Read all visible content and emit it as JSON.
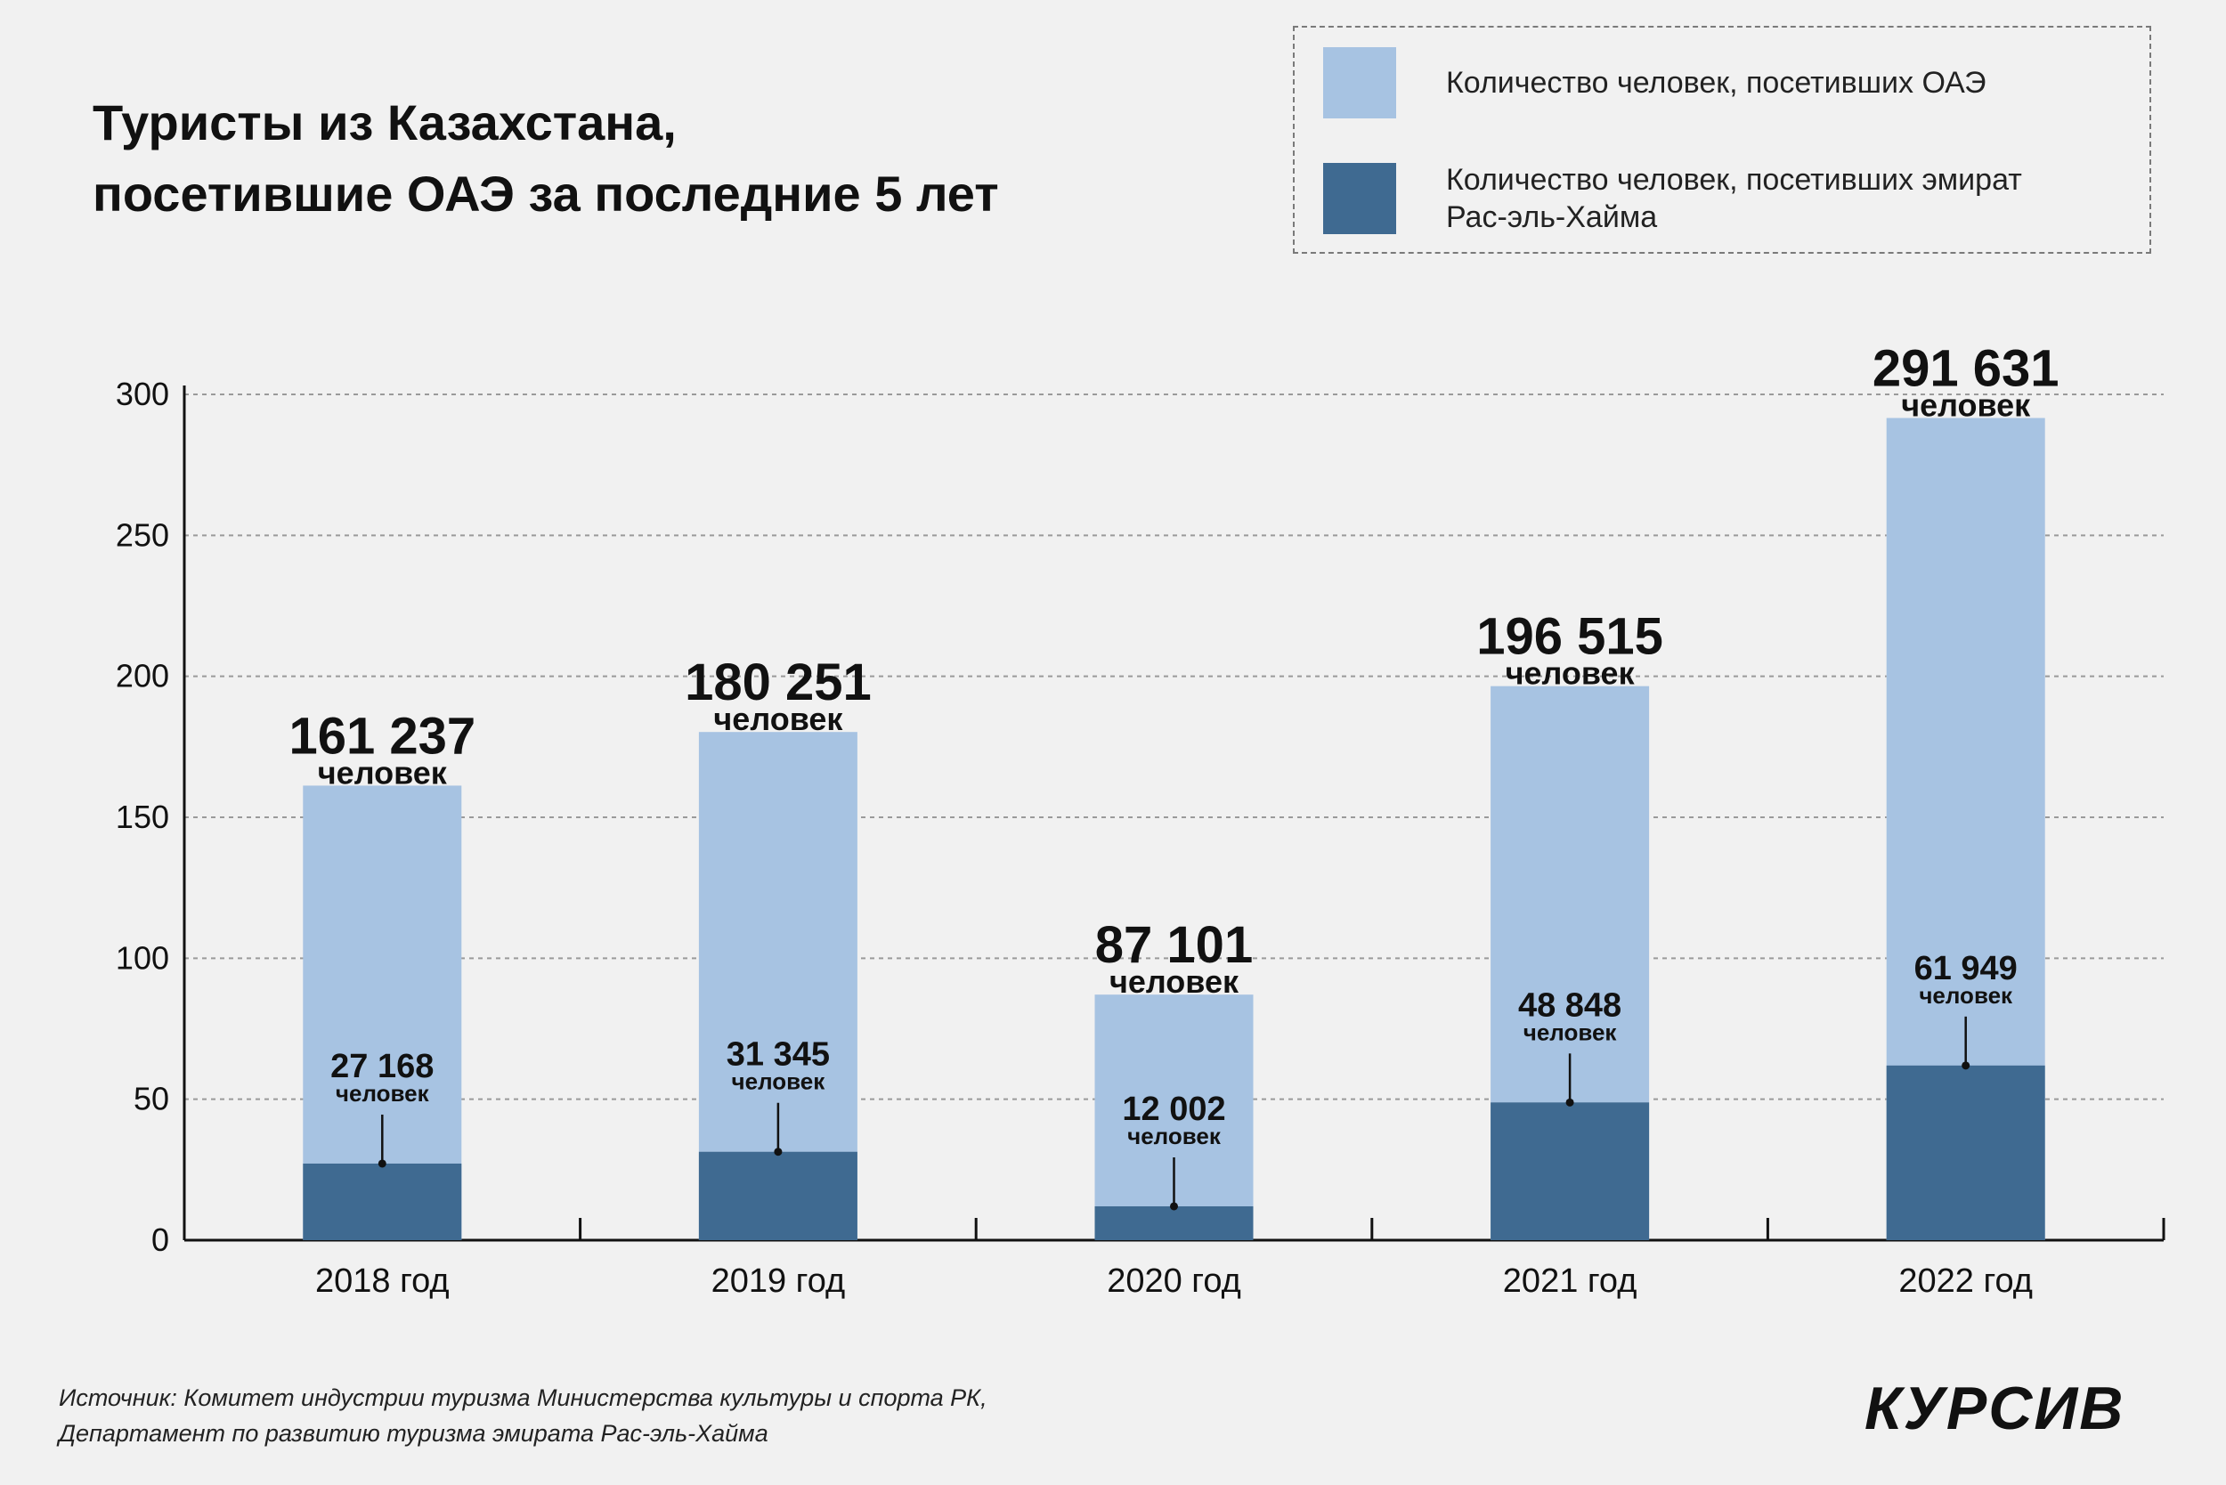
{
  "title": {
    "line1": "Туристы из Казахстана,",
    "line2": "посетившие ОАЭ за последние 5 лет"
  },
  "legend": {
    "total_label": "Количество человек, посетивших ОАЭ",
    "rak_label": "Количество человек, посетивших эмират Рас-эль-Хайма"
  },
  "colors": {
    "total": "#a7c3e2",
    "rak": "#3f6a91",
    "grid": "#9a9a9a",
    "axis": "#111111",
    "background": "#f1f1f1"
  },
  "chart_data": {
    "type": "bar",
    "stacked_overlay": true,
    "title": "Туристы из Казахстана, посетившие ОАЭ за последние 5 лет",
    "xlabel": "",
    "ylabel": "",
    "ylim": [
      0,
      300
    ],
    "yticks": [
      "0",
      "50",
      "100",
      "150",
      "200",
      "250",
      "300"
    ],
    "grid": true,
    "legend_position": "top-right",
    "categories": [
      "2018 год",
      "2019 год",
      "2020 год",
      "2021 год",
      "2022 год"
    ],
    "series": [
      {
        "name": "Количество человек, посетивших ОАЭ",
        "values": [
          161.237,
          180.251,
          87.101,
          196.515,
          291.631
        ],
        "labels": [
          "161 237",
          "180 251",
          "87 101",
          "196 515",
          "291 631"
        ]
      },
      {
        "name": "Количество человек, посетивших эмират Рас-эль-Хайма",
        "values": [
          27.168,
          31.345,
          12.002,
          48.848,
          61.949
        ],
        "labels": [
          "27 168",
          "31 345",
          "12 002",
          "48 848",
          "61 949"
        ]
      }
    ],
    "unit_label": "человек"
  },
  "source": {
    "line1": "Источник: Комитет индустрии туризма Министерства культуры и спорта РК,",
    "line2": "Департамент по развитию туризма эмирата Рас-эль-Хайма"
  },
  "logo": "КУРСИВ"
}
